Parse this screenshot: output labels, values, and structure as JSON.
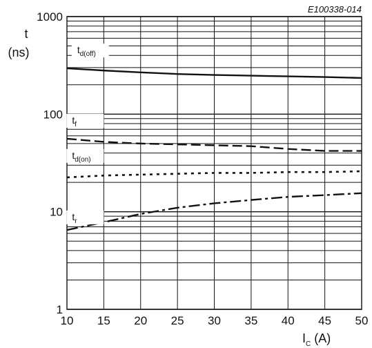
{
  "chart_data": {
    "type": "line",
    "figure_code": "E100338-014",
    "ylabel_symbol": "t",
    "ylabel_unit": "(ns)",
    "xlabel_symbol": "I",
    "xlabel_sub": "C",
    "xlabel_unit": "(A)",
    "x_scale": "linear",
    "y_scale": "log",
    "xlim": [
      10,
      50
    ],
    "ylim": [
      1,
      1000
    ],
    "grid": true,
    "x_ticks": [
      "10",
      "15",
      "20",
      "25",
      "30",
      "35",
      "40",
      "45",
      "50"
    ],
    "y_ticks": [
      "1",
      "10",
      "100",
      "1000"
    ],
    "x": [
      10,
      15,
      20,
      25,
      30,
      35,
      40,
      45,
      50
    ],
    "series": [
      {
        "name": "t",
        "sub": "d(off)",
        "style": "solid",
        "values": [
          295,
          280,
          268,
          258,
          252,
          248,
          244,
          240,
          235
        ]
      },
      {
        "name": "t",
        "sub": "f",
        "style": "dashed",
        "values": [
          56,
          52,
          50,
          49,
          48,
          47,
          44,
          42,
          42
        ]
      },
      {
        "name": "t",
        "sub": "d(on)",
        "style": "dotted",
        "values": [
          22.5,
          23.5,
          24,
          24.5,
          25,
          25,
          25.5,
          25.5,
          26
        ]
      },
      {
        "name": "t",
        "sub": "r",
        "style": "dashdot",
        "values": [
          6.5,
          7.8,
          9.5,
          11,
          12.2,
          13.2,
          14.2,
          14.8,
          15.5
        ]
      }
    ]
  }
}
